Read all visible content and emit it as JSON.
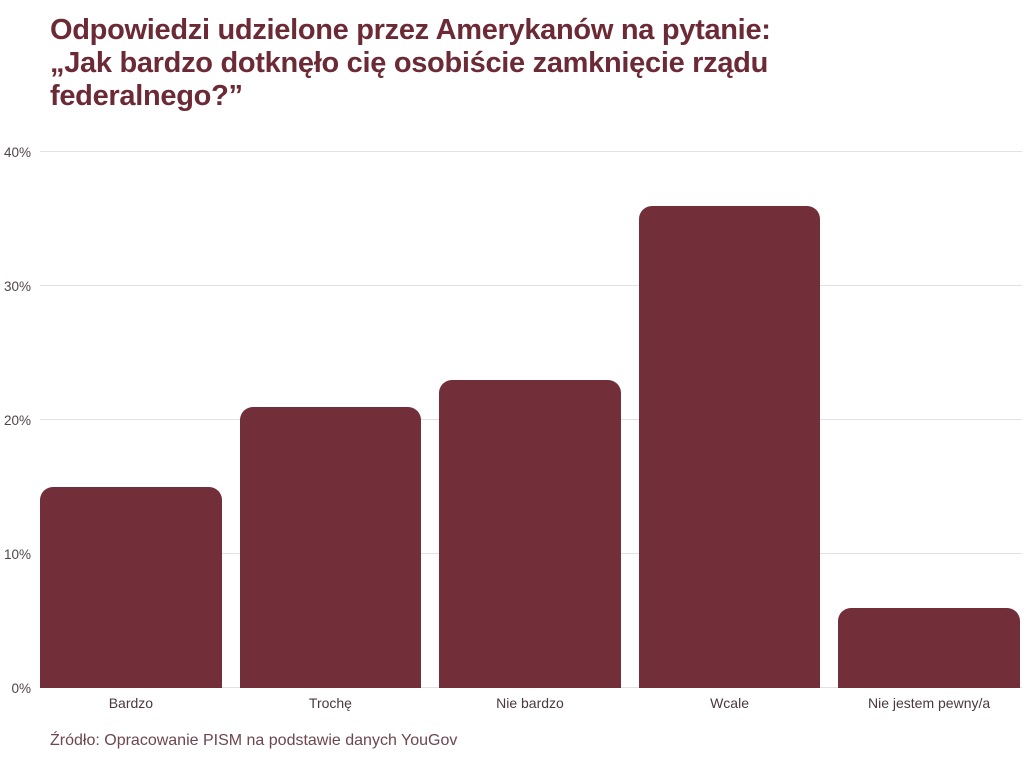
{
  "header": {
    "title_lines": [
      "Odpowiedzi udzielone przez Amerykanów na pytanie:",
      "„Jak bardzo dotknęło cię osobiście zamknięcie rządu",
      "federalnego?”"
    ]
  },
  "chart_data": {
    "type": "bar",
    "title": "Odpowiedzi udzielone przez Amerykanów na pytanie: „Jak bardzo dotknęło cię osobiście zamknięcie rządu federalnego?”",
    "categories": [
      "Bardzo",
      "Trochę",
      "Nie bardzo",
      "Wcale",
      "Nie jestem pewny/a"
    ],
    "values": [
      15,
      21,
      23,
      36,
      6
    ],
    "unit": "%",
    "ylim": [
      0,
      40
    ],
    "yticks": [
      0,
      10,
      20,
      30,
      40
    ],
    "ytick_labels": [
      "0%",
      "10%",
      "20%",
      "30%",
      "40%"
    ],
    "grid": true,
    "legend": "none",
    "bar_color": "#722F3A",
    "xlabel": "",
    "ylabel": ""
  },
  "footer": {
    "source": "Źródło: Opracowanie PISM na podstawie danych YouGov"
  }
}
